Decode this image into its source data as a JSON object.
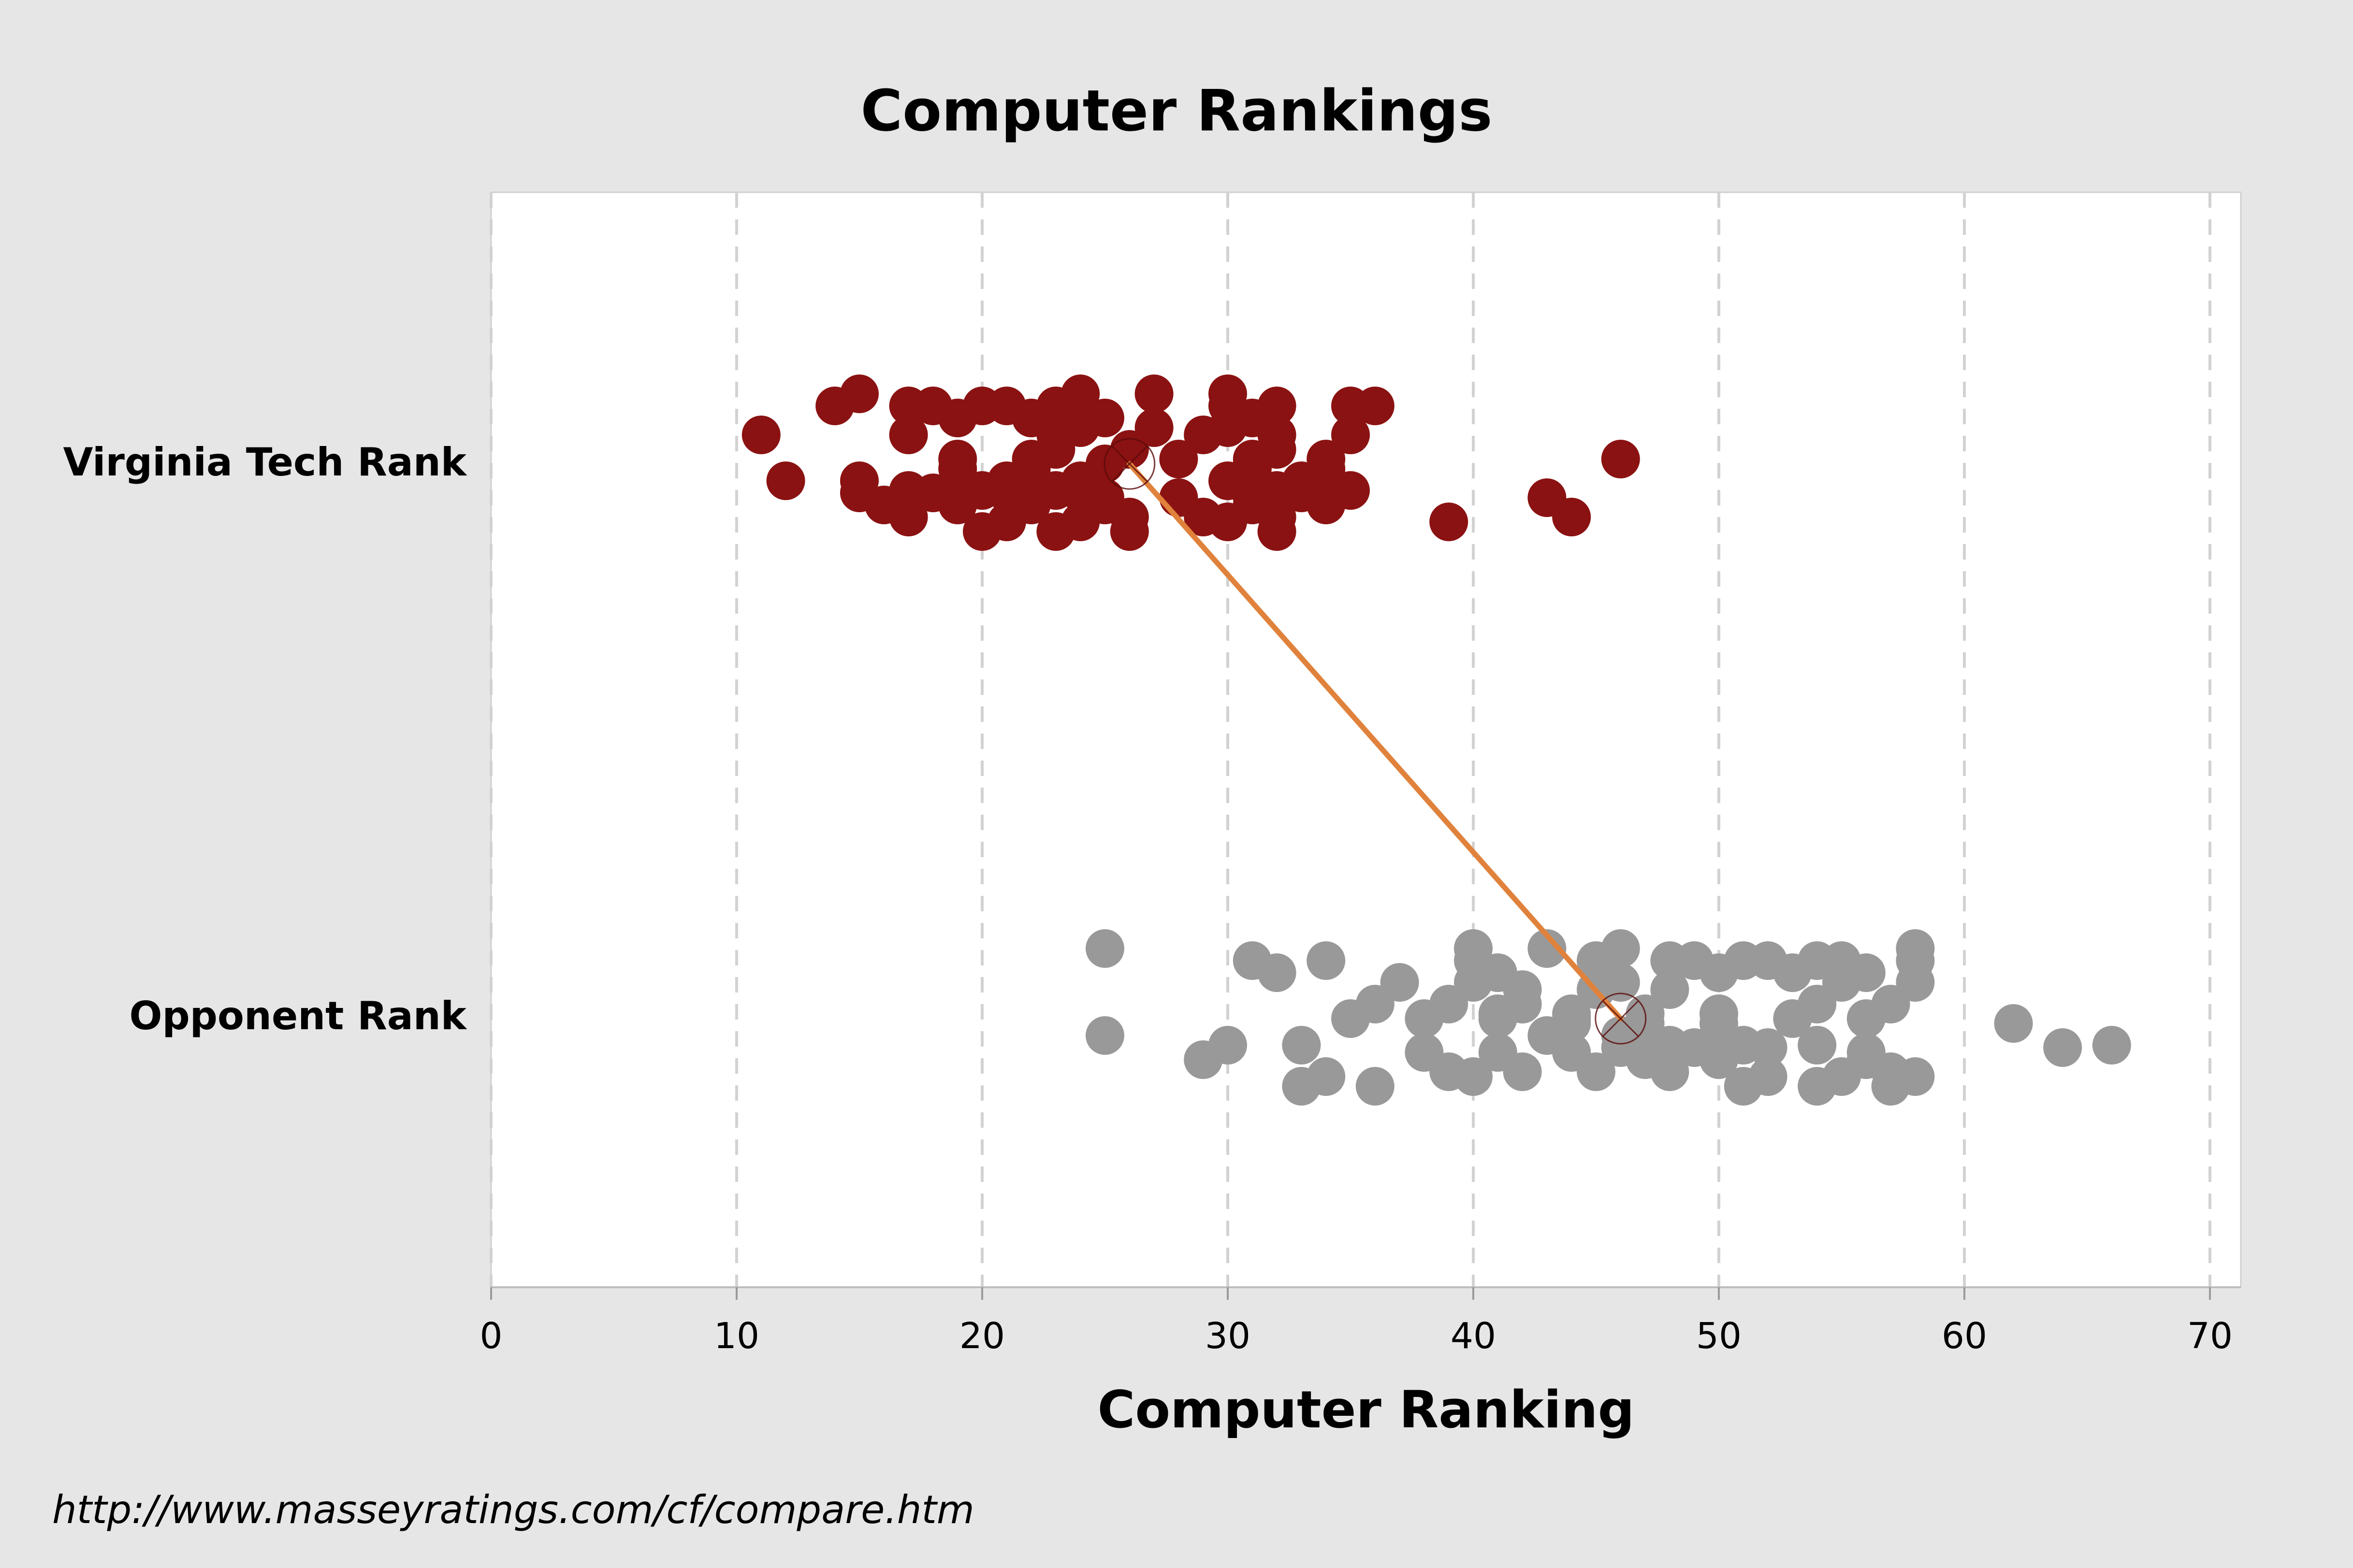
{
  "chart_data": {
    "type": "scatter",
    "title": "Computer Rankings",
    "xlabel": "Computer Ranking",
    "ylabel": "",
    "xlim": [
      0,
      70
    ],
    "xticks": [
      0,
      10,
      20,
      30,
      40,
      50,
      60,
      70
    ],
    "grid": "vertical dashed",
    "categories": [
      "Virginia Tech Rank",
      "Opponent Rank"
    ],
    "series": [
      {
        "category": "Virginia Tech Rank",
        "color": "#8b1212",
        "mean": 26,
        "values": [
          11,
          12,
          14,
          15,
          15,
          15,
          16,
          17,
          17,
          17,
          17,
          18,
          18,
          19,
          19,
          19,
          19,
          20,
          20,
          20,
          21,
          21,
          21,
          21,
          22,
          22,
          22,
          22,
          22,
          23,
          23,
          23,
          23,
          23,
          24,
          24,
          24,
          24,
          24,
          24,
          25,
          25,
          25,
          25,
          26,
          26,
          26,
          27,
          27,
          28,
          28,
          29,
          29,
          30,
          30,
          30,
          30,
          30,
          31,
          31,
          31,
          31,
          31,
          31,
          31,
          32,
          32,
          32,
          32,
          32,
          32,
          33,
          33,
          34,
          34,
          34,
          34,
          35,
          35,
          35,
          36,
          39,
          43,
          44,
          46
        ]
      },
      {
        "category": "Opponent Rank",
        "color": "#999999",
        "mean": 46,
        "values": [
          25,
          25,
          29,
          30,
          31,
          32,
          33,
          33,
          34,
          34,
          35,
          36,
          36,
          37,
          38,
          38,
          39,
          39,
          40,
          40,
          40,
          40,
          41,
          41,
          41,
          41,
          42,
          42,
          42,
          43,
          43,
          44,
          44,
          44,
          44,
          45,
          45,
          45,
          46,
          46,
          46,
          46,
          47,
          47,
          47,
          48,
          48,
          48,
          48,
          49,
          49,
          50,
          50,
          50,
          50,
          51,
          51,
          51,
          52,
          52,
          52,
          53,
          53,
          54,
          54,
          54,
          54,
          55,
          55,
          55,
          56,
          56,
          56,
          56,
          57,
          57,
          57,
          58,
          58,
          58,
          58,
          62,
          64,
          66
        ]
      }
    ],
    "mean_line_color": "#e0823c"
  },
  "source_text": "http://www.masseyratings.com/cf/compare.htm"
}
